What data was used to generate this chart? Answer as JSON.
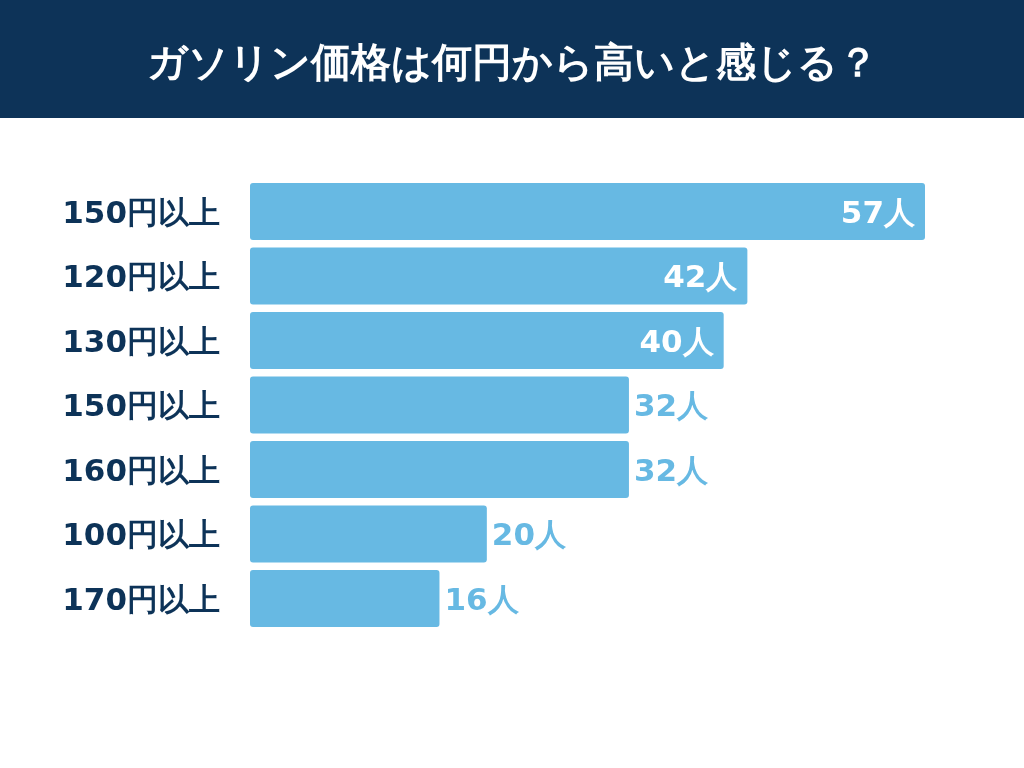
{
  "chart_data": {
    "type": "bar",
    "orientation": "horizontal",
    "title": "ガソリン価格は何円から高いと感じる？",
    "categories": [
      "150円以上",
      "120円以上",
      "130円以上",
      "150円以上",
      "160円以上",
      "100円以上",
      "170円以上"
    ],
    "values": [
      57,
      42,
      40,
      32,
      32,
      20,
      16
    ],
    "value_labels": [
      "57人",
      "42人",
      "40人",
      "32人",
      "32人",
      "20人",
      "16人"
    ],
    "color": "#67b9e3"
  }
}
